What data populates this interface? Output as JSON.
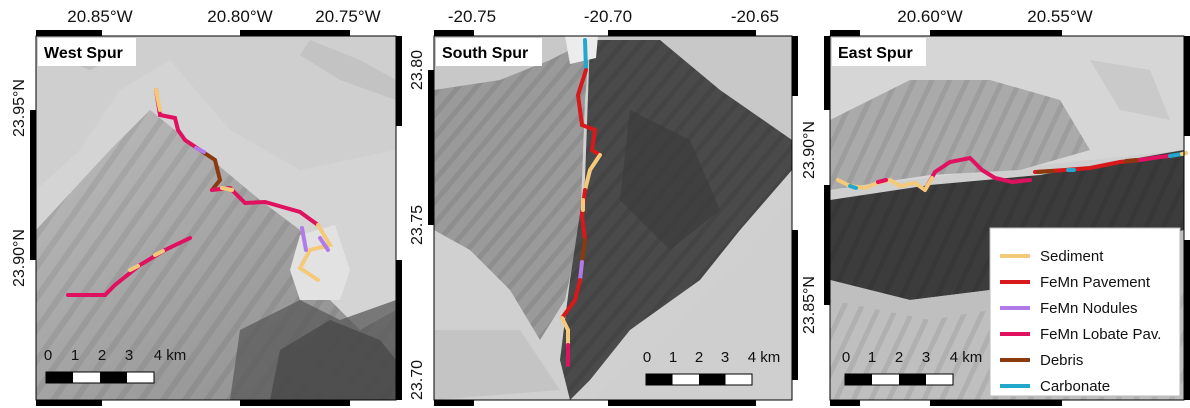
{
  "panels": [
    {
      "title": "West Spur",
      "top_ticks": [
        "20.85°W",
        "20.80°W",
        "20.75°W"
      ],
      "side_ticks": [
        "23.95°N",
        "23.90°N"
      ],
      "scale": [
        "0",
        "1",
        "2",
        "3",
        "4 km"
      ]
    },
    {
      "title": "South Spur",
      "top_ticks": [
        "-20.75",
        "-20.70",
        "-20.65"
      ],
      "side_ticks": [
        "23.80",
        "23.75",
        "23.70"
      ],
      "scale": [
        "0",
        "1",
        "2",
        "3",
        "4 km"
      ]
    },
    {
      "title": "East Spur",
      "top_ticks": [
        "20.60°W",
        "20.55°W"
      ],
      "side_ticks": [
        "23.90°N",
        "23.85°N"
      ],
      "scale": [
        "0",
        "1",
        "2",
        "3",
        "4 km"
      ]
    }
  ],
  "legend": [
    {
      "label": "Sediment",
      "color": "#f5c97a"
    },
    {
      "label": "FeMn Pavement",
      "color": "#d7191c"
    },
    {
      "label": "FeMn Nodules",
      "color": "#b07be8"
    },
    {
      "label": "FeMn Lobate Pav.",
      "color": "#e0115f"
    },
    {
      "label": "Debris",
      "color": "#8b3a0f"
    },
    {
      "label": "Carbonate",
      "color": "#22a8cc"
    }
  ]
}
